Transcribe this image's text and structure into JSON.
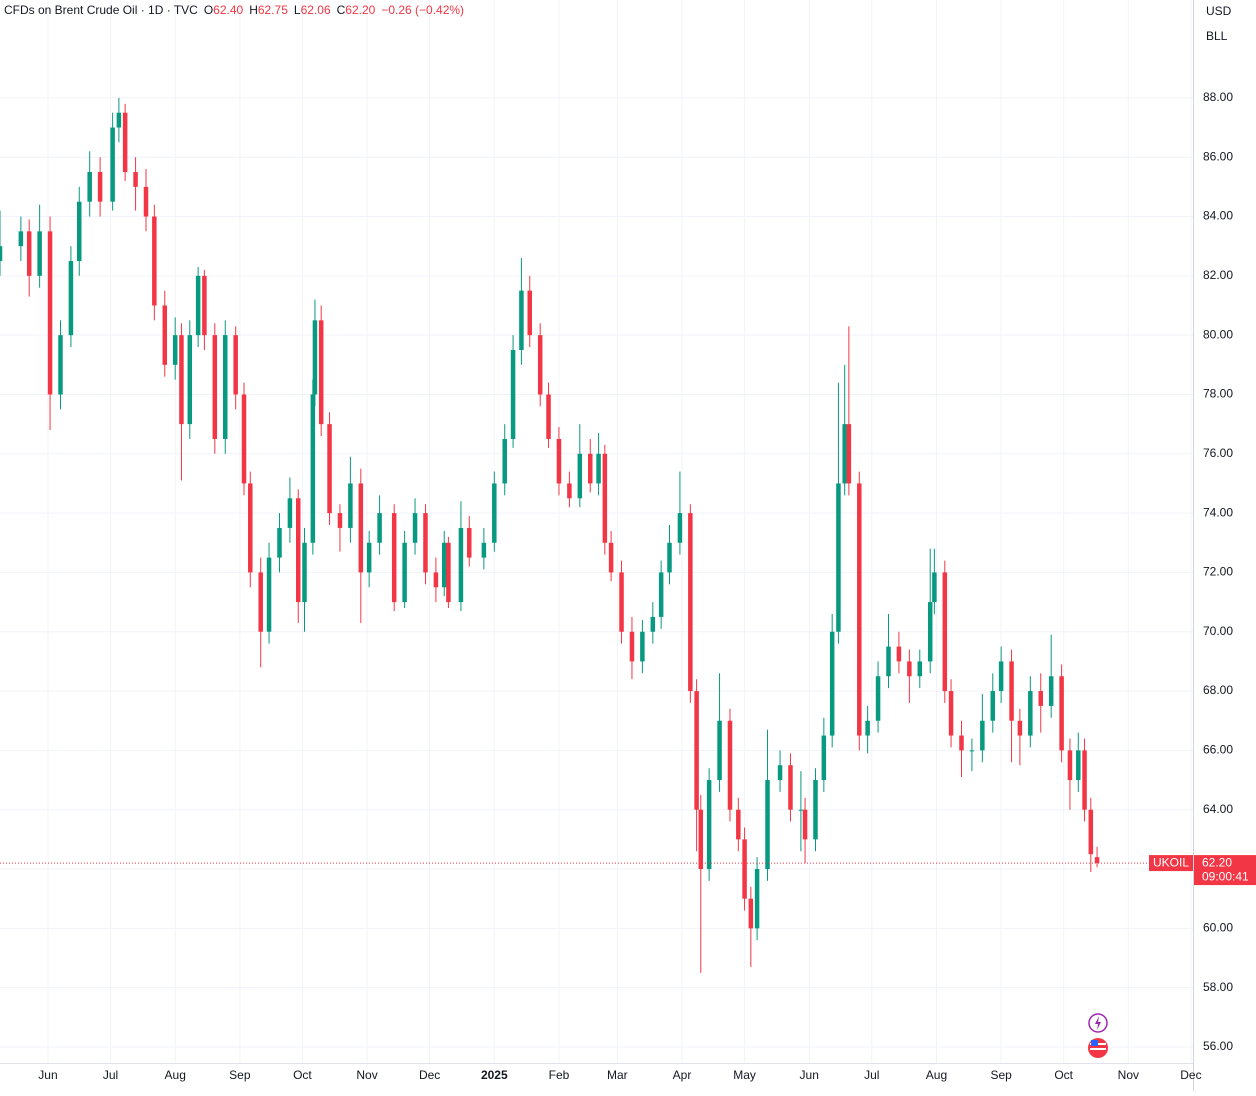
{
  "chart_data": {
    "type": "candlestick",
    "title": "CFDs on Brent Crude Oil · 1D · TVC",
    "header_fields": [
      {
        "key": "O",
        "value": "62.40"
      },
      {
        "key": "H",
        "value": "62.75"
      },
      {
        "key": "L",
        "value": "62.06"
      },
      {
        "key": "C",
        "value": "62.20"
      }
    ],
    "change": "−0.26 (−0.42%)",
    "currency": "USD",
    "unit": "BLL",
    "symbol": "UKOIL",
    "last_price_label": "62.20",
    "countdown": "09:00:41",
    "up_color": "#089981",
    "down_color": "#f23645",
    "grid": true,
    "xlim": [
      0,
      572
    ],
    "ylim": [
      55.46,
      91.3
    ],
    "xticks": [
      {
        "value": 23,
        "label": "Jun"
      },
      {
        "value": 53,
        "label": "Jul"
      },
      {
        "value": 84,
        "label": "Aug"
      },
      {
        "value": 115,
        "label": "Sep"
      },
      {
        "value": 145,
        "label": "Oct"
      },
      {
        "value": 176,
        "label": "Nov"
      },
      {
        "value": 206,
        "label": "Dec"
      },
      {
        "value": 237,
        "label": "2025"
      },
      {
        "value": 268,
        "label": "Feb"
      },
      {
        "value": 296,
        "label": "Mar"
      },
      {
        "value": 327,
        "label": "Apr"
      },
      {
        "value": 357,
        "label": "May"
      },
      {
        "value": 388,
        "label": "Jun"
      },
      {
        "value": 418,
        "label": "Jul"
      },
      {
        "value": 449,
        "label": "Aug"
      },
      {
        "value": 480,
        "label": "Sep"
      },
      {
        "value": 510,
        "label": "Oct"
      },
      {
        "value": 541,
        "label": "Nov"
      },
      {
        "value": 571,
        "label": "Dec"
      }
    ],
    "yticks": [
      {
        "value": 56,
        "label": "56.00"
      },
      {
        "value": 58,
        "label": "58.00"
      },
      {
        "value": 60,
        "label": "60.00"
      },
      {
        "value": 62,
        "label": "62.00"
      },
      {
        "value": 64,
        "label": "64.00"
      },
      {
        "value": 66,
        "label": "66.00"
      },
      {
        "value": 68,
        "label": "68.00"
      },
      {
        "value": 70,
        "label": "70.00"
      },
      {
        "value": 72,
        "label": "72.00"
      },
      {
        "value": 74,
        "label": "74.00"
      },
      {
        "value": 76,
        "label": "76.00"
      },
      {
        "value": 78,
        "label": "78.00"
      },
      {
        "value": 80,
        "label": "80.00"
      },
      {
        "value": 82,
        "label": "82.00"
      },
      {
        "value": 84,
        "label": "84.00"
      },
      {
        "value": 86,
        "label": "86.00"
      },
      {
        "value": 88,
        "label": "88.00"
      }
    ],
    "x": [
      0,
      10,
      14,
      19,
      24,
      29,
      34,
      38,
      43,
      48,
      54,
      57,
      60,
      65,
      70,
      74,
      79,
      84,
      87,
      91,
      95,
      98,
      103,
      108,
      113,
      117,
      120,
      125,
      129,
      134,
      139,
      143,
      146,
      150,
      151,
      154,
      158,
      163,
      168,
      173,
      177,
      182,
      189,
      194,
      199,
      204,
      209,
      213,
      215,
      221,
      225,
      232,
      237,
      242,
      246,
      250,
      254,
      259,
      263,
      268,
      273,
      278,
      283,
      287,
      290,
      293,
      298,
      303,
      308,
      313,
      317,
      321,
      326,
      331,
      334,
      336,
      340,
      345,
      350,
      354,
      357,
      360,
      363,
      368,
      374,
      379,
      384,
      386,
      391,
      395,
      399,
      402,
      405,
      407,
      412,
      416,
      421,
      426,
      431,
      436,
      441,
      446,
      448,
      453,
      456,
      461,
      466,
      471,
      476,
      480,
      485,
      489,
      494,
      499,
      504,
      509,
      513,
      517,
      520,
      523,
      526
    ],
    "ohlc": [
      [
        82.5,
        84.2,
        82,
        83
      ],
      [
        83,
        84,
        82.5,
        83.5
      ],
      [
        83.5,
        83.9,
        81.3,
        82
      ],
      [
        82,
        84.4,
        81.6,
        83.5
      ],
      [
        83.5,
        84,
        76.8,
        78
      ],
      [
        78,
        80.5,
        77.5,
        80
      ],
      [
        80,
        83,
        79.6,
        82.5
      ],
      [
        82.5,
        85,
        82,
        84.5
      ],
      [
        84.5,
        86.2,
        84,
        85.5
      ],
      [
        85.5,
        86,
        84,
        84.5
      ],
      [
        84.5,
        87.5,
        84.2,
        87
      ],
      [
        87,
        88,
        86.5,
        87.5
      ],
      [
        87.5,
        87.8,
        85.2,
        85.5
      ],
      [
        85.5,
        86,
        84.2,
        85
      ],
      [
        85,
        85.6,
        83.5,
        84
      ],
      [
        84,
        84.4,
        80.5,
        81
      ],
      [
        81,
        81.5,
        78.6,
        79
      ],
      [
        79,
        80.6,
        78.5,
        80
      ],
      [
        80,
        80.4,
        75.1,
        77
      ],
      [
        77,
        80.5,
        76.5,
        80
      ],
      [
        80,
        82.3,
        79.6,
        82
      ],
      [
        82,
        82.2,
        79.5,
        80
      ],
      [
        80,
        80.4,
        76,
        76.5
      ],
      [
        76.5,
        80.5,
        76,
        80
      ],
      [
        80,
        80.3,
        77.5,
        78
      ],
      [
        78,
        78.4,
        74.6,
        75
      ],
      [
        75,
        75.4,
        71.5,
        72
      ],
      [
        72,
        72.5,
        68.8,
        70
      ],
      [
        70,
        73,
        69.6,
        72.5
      ],
      [
        72.5,
        74,
        72,
        73.5
      ],
      [
        73.5,
        75.2,
        73,
        74.5
      ],
      [
        74.5,
        74.8,
        70.3,
        71
      ],
      [
        71,
        73.5,
        70,
        73
      ],
      [
        73,
        78.5,
        72.6,
        78
      ],
      [
        78,
        81.2,
        77.6,
        80.5
      ],
      [
        80.5,
        81,
        76.6,
        77
      ],
      [
        77,
        77.4,
        73.6,
        74
      ],
      [
        74,
        74.3,
        72.7,
        73.5
      ],
      [
        73.5,
        75.9,
        73,
        75
      ],
      [
        75,
        75.5,
        70.3,
        72
      ],
      [
        72,
        73.4,
        71.5,
        73
      ],
      [
        73,
        74.6,
        72.6,
        74
      ],
      [
        74,
        74.3,
        70.7,
        71
      ],
      [
        71,
        73.4,
        70.8,
        73
      ],
      [
        73,
        74.5,
        72.6,
        74
      ],
      [
        74,
        74.3,
        71.6,
        72
      ],
      [
        72,
        72.5,
        71,
        71.5
      ],
      [
        71.5,
        73.4,
        71.2,
        73
      ],
      [
        73,
        73.2,
        70.8,
        71
      ],
      [
        71,
        74.4,
        70.7,
        73.5
      ],
      [
        73.5,
        73.9,
        72.2,
        72.5
      ],
      [
        72.5,
        73.5,
        72.1,
        73
      ],
      [
        73,
        75.4,
        72.7,
        75
      ],
      [
        75,
        77,
        74.6,
        76.5
      ],
      [
        76.5,
        80,
        76.2,
        79.5
      ],
      [
        79.5,
        82.6,
        79,
        81.5
      ],
      [
        81.5,
        82,
        79.6,
        80
      ],
      [
        80,
        80.4,
        77.6,
        78
      ],
      [
        78,
        78.4,
        76.2,
        76.5
      ],
      [
        76.5,
        76.9,
        74.6,
        75
      ],
      [
        75,
        75.4,
        74.2,
        74.5
      ],
      [
        74.5,
        77,
        74.2,
        76
      ],
      [
        76,
        76.5,
        74.7,
        75
      ],
      [
        75,
        76.7,
        74.6,
        76
      ],
      [
        76,
        76.3,
        72.6,
        73
      ],
      [
        73,
        73.4,
        71.7,
        72
      ],
      [
        72,
        72.4,
        69.6,
        70
      ],
      [
        70,
        70.5,
        68.4,
        69
      ],
      [
        69,
        70.4,
        68.6,
        70
      ],
      [
        70,
        71,
        69.6,
        70.5
      ],
      [
        70.5,
        72.4,
        70.1,
        72
      ],
      [
        72,
        73.6,
        71.6,
        73
      ],
      [
        73,
        75.4,
        72.6,
        74
      ],
      [
        74,
        74.3,
        67.6,
        68
      ],
      [
        68,
        68.4,
        62.6,
        64
      ],
      [
        64,
        64.5,
        58.5,
        62
      ],
      [
        62,
        65.4,
        61.6,
        65
      ],
      [
        65,
        68.6,
        64.6,
        67
      ],
      [
        67,
        67.4,
        63.6,
        64
      ],
      [
        64,
        64.4,
        62.6,
        63
      ],
      [
        63,
        63.4,
        60.6,
        61
      ],
      [
        61,
        61.4,
        58.7,
        60
      ],
      [
        60,
        62.4,
        59.6,
        62
      ],
      [
        62,
        66.7,
        61.6,
        65
      ],
      [
        65,
        66,
        64.6,
        65.5
      ],
      [
        65.5,
        65.9,
        63.6,
        64
      ],
      [
        64,
        65.3,
        62.6,
        64
      ],
      [
        64,
        64.4,
        62.2,
        63
      ],
      [
        63,
        65.4,
        62.6,
        65
      ],
      [
        65,
        67.1,
        64.6,
        66.5
      ],
      [
        66.5,
        70.6,
        66.1,
        70
      ],
      [
        70,
        78.4,
        69.6,
        75
      ],
      [
        75,
        79,
        74.6,
        77
      ],
      [
        77,
        80.3,
        74.6,
        75
      ],
      [
        75,
        75.4,
        66,
        66.5
      ],
      [
        66.5,
        67.5,
        65.9,
        67
      ],
      [
        67,
        69,
        66.6,
        68.5
      ],
      [
        68.5,
        70.6,
        68.1,
        69.5
      ],
      [
        69.5,
        70,
        68.6,
        69
      ],
      [
        69,
        69.4,
        67.6,
        68.5
      ],
      [
        68.5,
        69.4,
        68.1,
        69
      ],
      [
        69,
        72.8,
        68.6,
        71
      ],
      [
        71,
        72.8,
        70.6,
        72
      ],
      [
        72,
        72.4,
        67.6,
        68
      ],
      [
        68,
        68.4,
        66.1,
        66.5
      ],
      [
        66.5,
        67,
        65.1,
        66
      ],
      [
        66,
        66.4,
        65.3,
        66
      ],
      [
        66,
        67.9,
        65.6,
        67
      ],
      [
        67,
        68.6,
        66.6,
        68
      ],
      [
        68,
        69.5,
        67.6,
        69
      ],
      [
        69,
        69.4,
        65.6,
        67
      ],
      [
        67,
        67.4,
        65.5,
        66.5
      ],
      [
        66.5,
        68.5,
        66.1,
        68
      ],
      [
        68,
        68.6,
        66.6,
        67.5
      ],
      [
        67.5,
        69.9,
        67.1,
        68.5
      ],
      [
        68.5,
        68.9,
        65.6,
        66
      ],
      [
        66,
        66.4,
        64,
        65
      ],
      [
        65,
        66.6,
        64.6,
        66
      ],
      [
        66,
        66.4,
        63.6,
        64
      ],
      [
        64,
        64.4,
        61.9,
        62.5
      ],
      [
        62.4,
        62.75,
        62.06,
        62.2
      ]
    ]
  }
}
